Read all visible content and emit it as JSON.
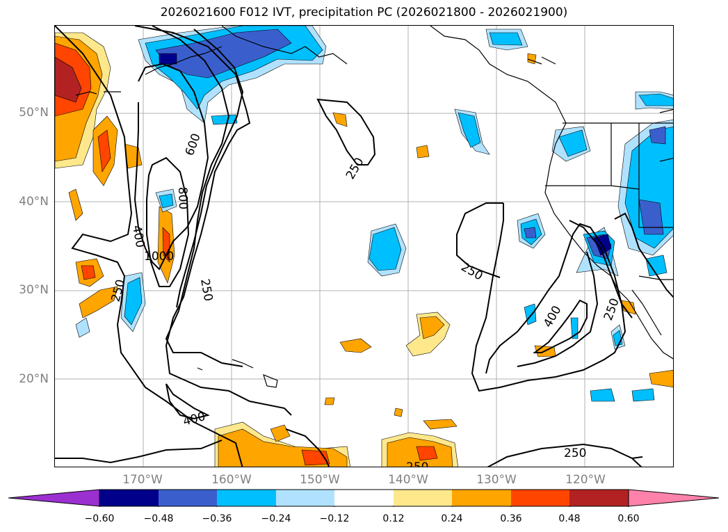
{
  "title": "2026021600 F012 IVT, precipitation PC (2026021800 - 2026021900)",
  "lat_labels": [
    "50°N",
    "40°N",
    "30°N",
    "20°N"
  ],
  "lon_labels": [
    "170°W",
    "160°W",
    "150°W",
    "140°W",
    "130°W",
    "120°W"
  ],
  "colorbar": {
    "ticks": [
      "−0.60",
      "−0.48",
      "−0.36",
      "−0.24",
      "−0.12",
      "0.12",
      "0.24",
      "0.36",
      "0.48",
      "0.60"
    ],
    "colors": [
      "#9b30d0",
      "#00008b",
      "#3a5fcd",
      "#00bfff",
      "#b0e2ff",
      "#ffffff",
      "#ffe88c",
      "#ffa500",
      "#ff4500",
      "#b22222",
      "#ff82ab"
    ]
  },
  "contour_labels": {
    "c250a": "250",
    "c250b": "250",
    "c250c": "250",
    "c250d": "250",
    "c250e": "250",
    "c250f": "250",
    "c250g": "250",
    "c400a": "400",
    "c400b": "400",
    "c400c": "400",
    "c600": "600",
    "c800": "800",
    "c1000": "1000"
  },
  "map_fill_colors": {
    "neg_light": "#b0e2ff",
    "neg_mid": "#00bfff",
    "neg_dark": "#3a5fcd",
    "neg_darkest": "#00008b",
    "pos_light": "#ffe88c",
    "pos_mid": "#ffa500",
    "pos_dark": "#ff4500",
    "pos_darkest": "#b22222"
  }
}
